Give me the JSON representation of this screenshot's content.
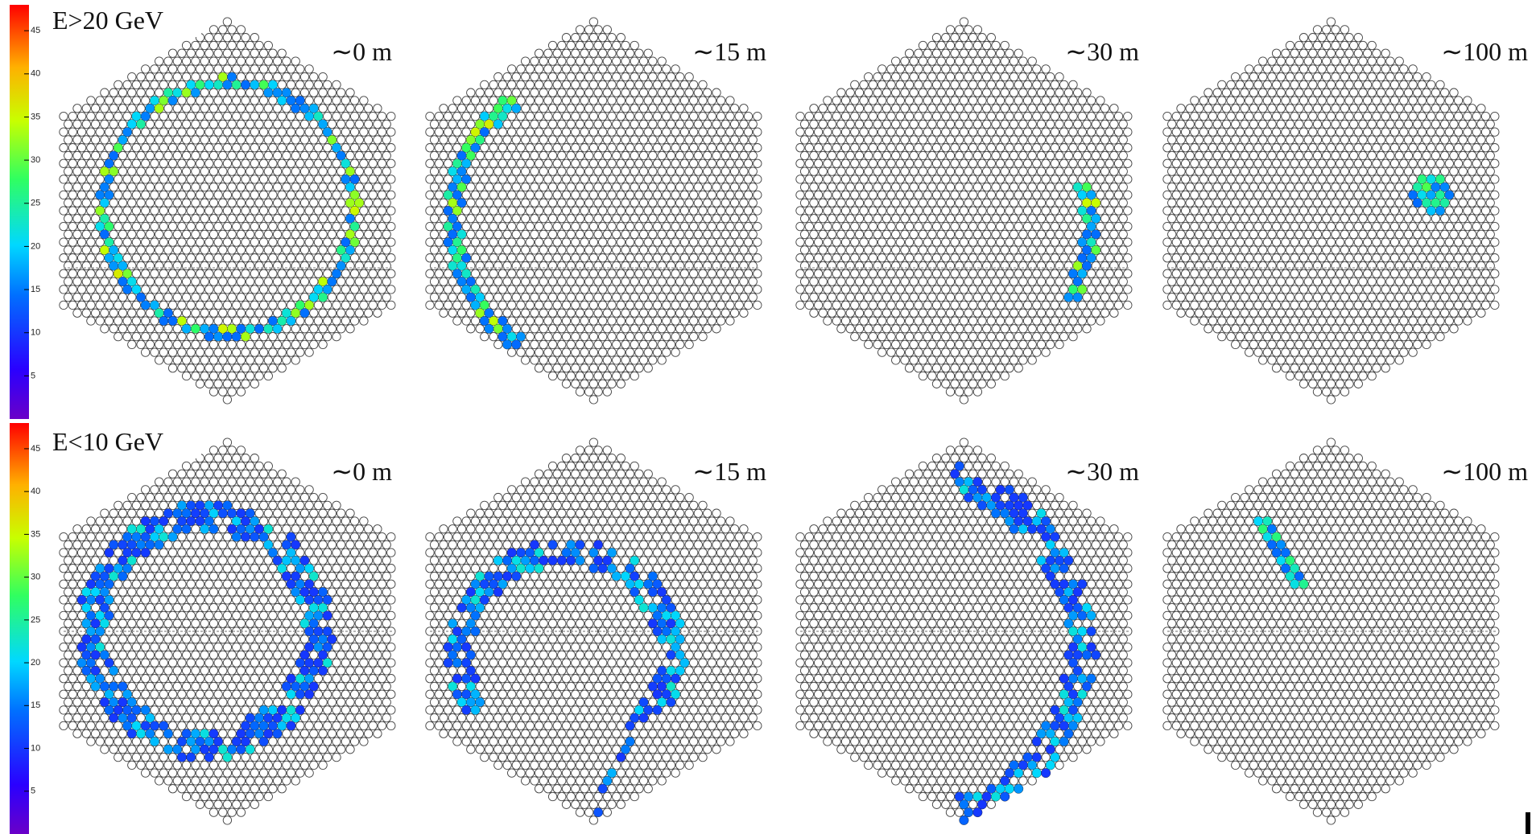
{
  "rows": [
    {
      "label": "E>20 GeV",
      "panels": [
        "∼0 m",
        "∼15 m",
        "∼30 m",
        "∼100 m"
      ],
      "colorbar": {
        "range": [
          0,
          48
        ],
        "ticks": [
          5,
          10,
          15,
          20,
          25,
          30,
          35,
          40,
          45
        ]
      }
    },
    {
      "label": "E<10 GeV",
      "panels": [
        "∼0 m",
        "∼15 m",
        "∼30 m",
        "∼100 m"
      ],
      "colorbar": {
        "range": [
          0,
          48
        ],
        "ticks": [
          5,
          10,
          15,
          20,
          25,
          30,
          35,
          40,
          45
        ]
      }
    }
  ]
}
